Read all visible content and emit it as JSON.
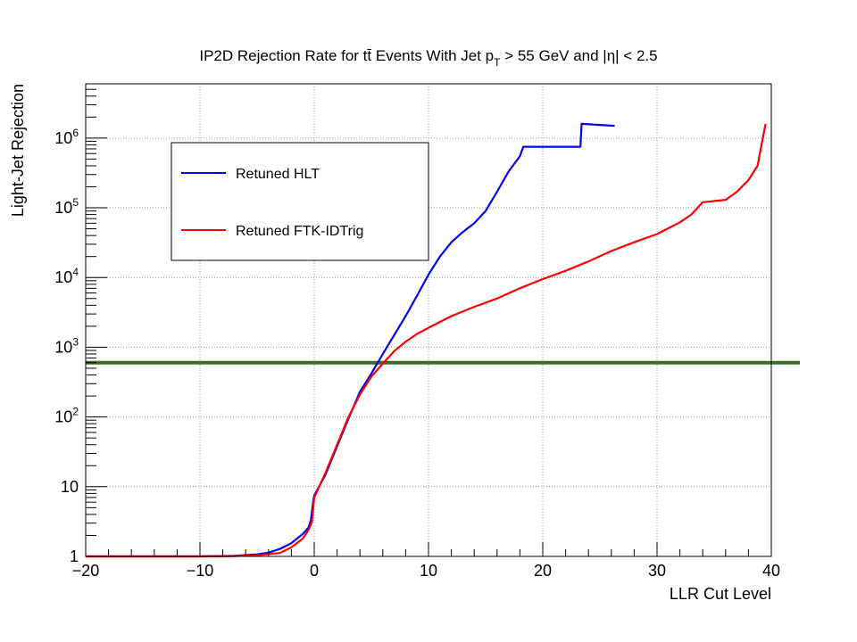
{
  "chart_data": {
    "type": "line",
    "title": "IP2D Rejection Rate for tt̄ Events With Jet p",
    "title_sub": "T",
    "title_tail": " > 55 GeV and |η| < 2.5",
    "xlabel": "LLR Cut Level",
    "ylabel": "Light-Jet Rejection",
    "xlim": [
      -20,
      40
    ],
    "ylim": [
      1,
      6000000
    ],
    "yscale": "log",
    "grid": true,
    "legend_position": "top-left",
    "x_ticks": [
      {
        "value": -20,
        "label": "−20"
      },
      {
        "value": -10,
        "label": "−10"
      },
      {
        "value": 0,
        "label": "0"
      },
      {
        "value": 10,
        "label": "10"
      },
      {
        "value": 20,
        "label": "20"
      },
      {
        "value": 30,
        "label": "30"
      },
      {
        "value": 40,
        "label": "40"
      }
    ],
    "y_ticks": [
      {
        "value": 1,
        "base": "1",
        "exp": ""
      },
      {
        "value": 10,
        "base": "10",
        "exp": ""
      },
      {
        "value": 100,
        "base": "10",
        "exp": "2"
      },
      {
        "value": 1000,
        "base": "10",
        "exp": "3"
      },
      {
        "value": 10000,
        "base": "10",
        "exp": "4"
      },
      {
        "value": 100000,
        "base": "10",
        "exp": "5"
      },
      {
        "value": 1000000,
        "base": "10",
        "exp": "6"
      }
    ],
    "reference_line": {
      "y": 600,
      "color": "#3a6e1f"
    },
    "series": [
      {
        "name": "Retuned HLT",
        "color": "#0000ff",
        "points": [
          [
            -20,
            1
          ],
          [
            -10,
            1
          ],
          [
            -7,
            1.02
          ],
          [
            -5,
            1.07
          ],
          [
            -4,
            1.13
          ],
          [
            -3,
            1.28
          ],
          [
            -2,
            1.55
          ],
          [
            -1,
            2.1
          ],
          [
            -0.5,
            2.6
          ],
          [
            -0.3,
            3.3
          ],
          [
            -0.1,
            6
          ],
          [
            0,
            7.5
          ],
          [
            1,
            15
          ],
          [
            2,
            38
          ],
          [
            3,
            95
          ],
          [
            4,
            230
          ],
          [
            5,
            420
          ],
          [
            6,
            800
          ],
          [
            7,
            1500
          ],
          [
            8,
            2800
          ],
          [
            9,
            5500
          ],
          [
            10,
            11000
          ],
          [
            11,
            20000
          ],
          [
            12,
            32000
          ],
          [
            13,
            45000
          ],
          [
            14,
            60000
          ],
          [
            15,
            90000
          ],
          [
            16,
            170000
          ],
          [
            17,
            330000
          ],
          [
            18,
            550000
          ],
          [
            18.3,
            750000
          ],
          [
            23.3,
            750000
          ],
          [
            23.4,
            1600000
          ],
          [
            26.3,
            1500000
          ]
        ]
      },
      {
        "name": "Retuned FTK-IDTrig",
        "color": "#ff0000",
        "points": [
          [
            -20,
            1
          ],
          [
            -10,
            1
          ],
          [
            -7,
            1.01
          ],
          [
            -5,
            1.04
          ],
          [
            -3,
            1.12
          ],
          [
            -2,
            1.35
          ],
          [
            -1,
            1.8
          ],
          [
            -0.5,
            2.4
          ],
          [
            -0.2,
            3.1
          ],
          [
            0,
            7
          ],
          [
            1,
            16
          ],
          [
            2,
            40
          ],
          [
            3,
            100
          ],
          [
            4,
            210
          ],
          [
            5,
            380
          ],
          [
            6,
            580
          ],
          [
            7,
            880
          ],
          [
            8,
            1200
          ],
          [
            9,
            1550
          ],
          [
            10,
            1900
          ],
          [
            12,
            2800
          ],
          [
            14,
            3800
          ],
          [
            16,
            5000
          ],
          [
            18,
            7000
          ],
          [
            20,
            9500
          ],
          [
            22,
            12500
          ],
          [
            24,
            17000
          ],
          [
            26,
            24000
          ],
          [
            28,
            32000
          ],
          [
            30,
            42000
          ],
          [
            32,
            62000
          ],
          [
            33,
            80000
          ],
          [
            34,
            120000
          ],
          [
            36,
            130000
          ],
          [
            37,
            170000
          ],
          [
            38,
            250000
          ],
          [
            38.8,
            400000
          ],
          [
            39.2,
            900000
          ],
          [
            39.5,
            1600000
          ]
        ]
      }
    ]
  }
}
